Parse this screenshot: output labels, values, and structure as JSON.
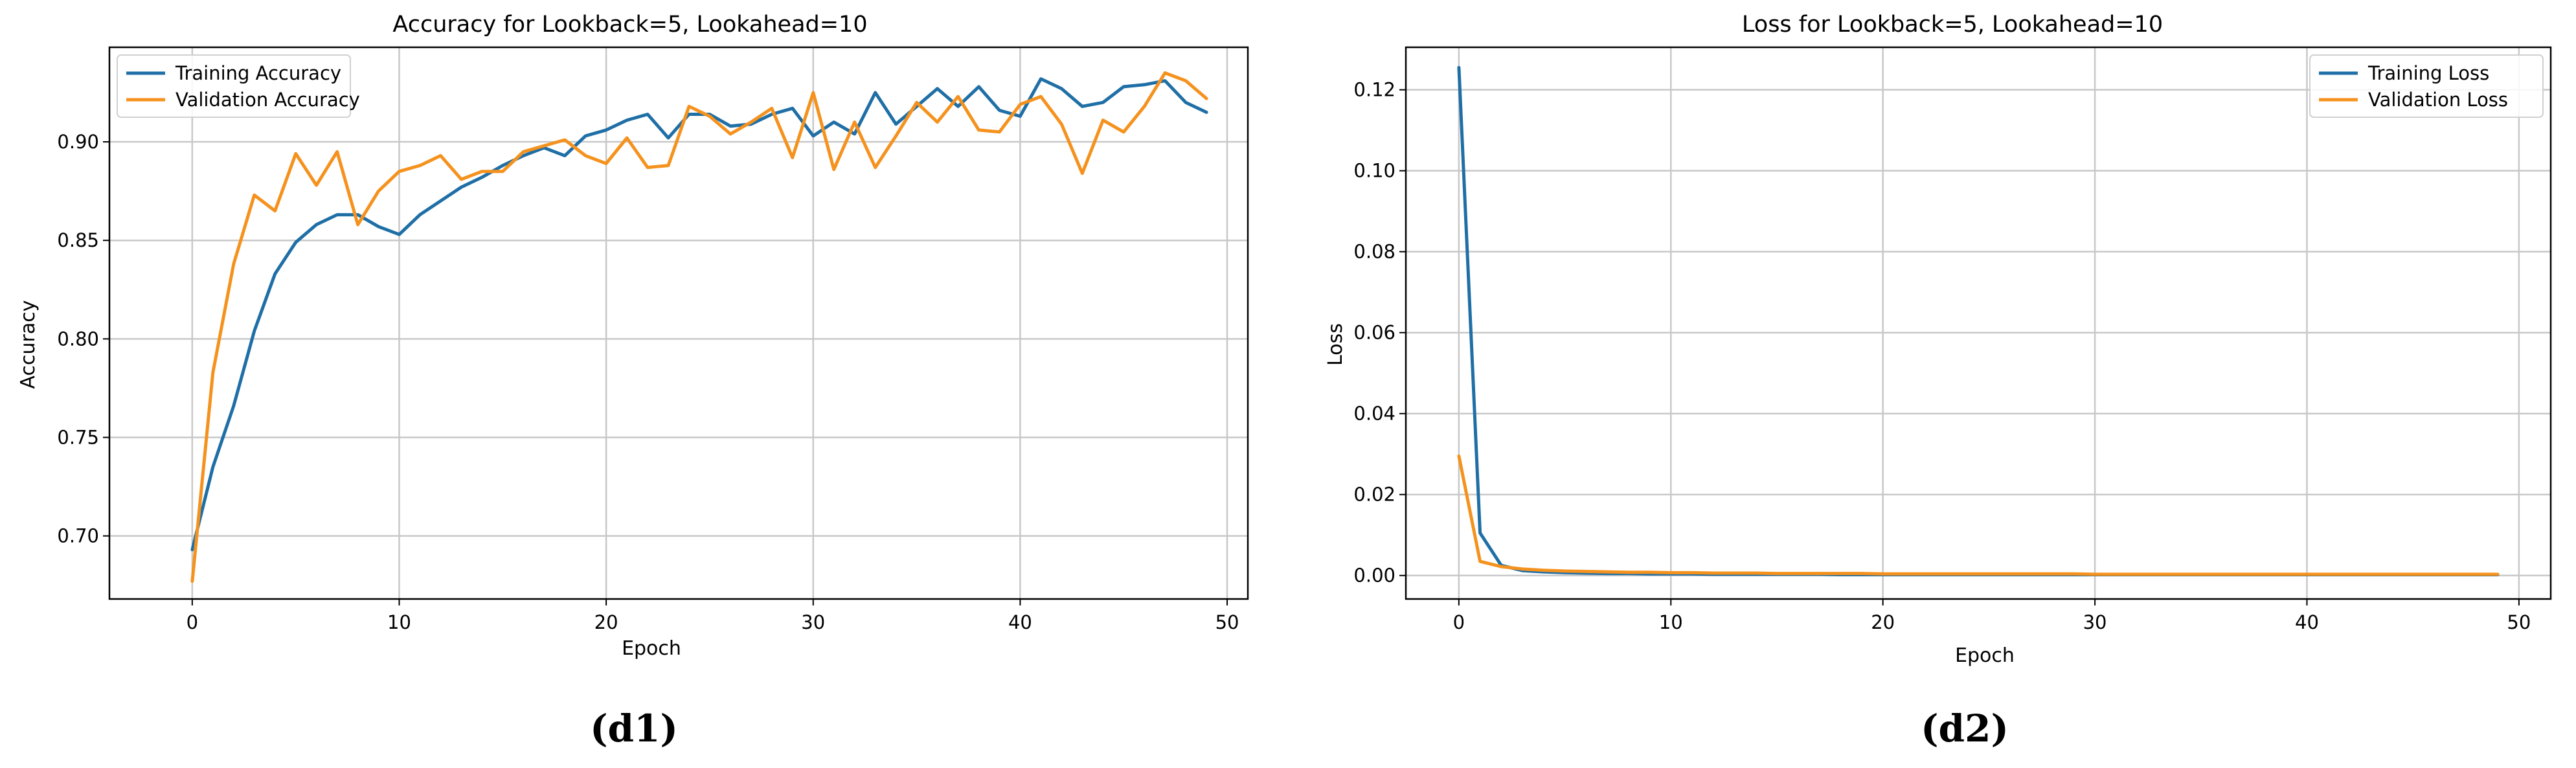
{
  "colors": {
    "training": "#1f6fa6",
    "validation": "#f5921e",
    "grid": "#c8c8c8",
    "frame": "#000000"
  },
  "chart_data": [
    {
      "type": "line",
      "title": "Accuracy for Lookback=5, Lookahead=10",
      "xlabel": "Epoch",
      "ylabel": "Accuracy",
      "caption": "(d1)",
      "xlim": [
        -4,
        51
      ],
      "ylim": [
        0.668,
        0.948
      ],
      "xticks": [
        0,
        10,
        20,
        30,
        40,
        50
      ],
      "yticks": [
        0.7,
        0.75,
        0.8,
        0.85,
        0.9
      ],
      "ytick_labels": [
        "0.70",
        "0.75",
        "0.80",
        "0.85",
        "0.90"
      ],
      "grid": true,
      "legend_position": "top-left",
      "series": [
        {
          "name": "Training Accuracy",
          "color_key": "training",
          "values": [
            0.693,
            0.735,
            0.766,
            0.804,
            0.833,
            0.849,
            0.858,
            0.863,
            0.863,
            0.857,
            0.853,
            0.863,
            0.87,
            0.877,
            0.882,
            0.888,
            0.893,
            0.897,
            0.893,
            0.903,
            0.906,
            0.911,
            0.914,
            0.902,
            0.914,
            0.914,
            0.908,
            0.909,
            0.914,
            0.917,
            0.903,
            0.91,
            0.904,
            0.925,
            0.909,
            0.918,
            0.927,
            0.918,
            0.928,
            0.916,
            0.913,
            0.932,
            0.927,
            0.918,
            0.92,
            0.928,
            0.929,
            0.931,
            0.92,
            0.915
          ]
        },
        {
          "name": "Validation Accuracy",
          "color_key": "validation",
          "values": [
            0.677,
            0.783,
            0.838,
            0.873,
            0.865,
            0.894,
            0.878,
            0.895,
            0.858,
            0.875,
            0.885,
            0.888,
            0.893,
            0.881,
            0.885,
            0.885,
            0.895,
            0.898,
            0.901,
            0.893,
            0.889,
            0.902,
            0.887,
            0.888,
            0.918,
            0.913,
            0.904,
            0.91,
            0.917,
            0.892,
            0.925,
            0.886,
            0.91,
            0.887,
            0.903,
            0.92,
            0.91,
            0.923,
            0.906,
            0.905,
            0.919,
            0.923,
            0.909,
            0.884,
            0.911,
            0.905,
            0.918,
            0.935,
            0.931,
            0.922
          ]
        }
      ]
    },
    {
      "type": "line",
      "title": "Loss for Lookback=5, Lookahead=10",
      "xlabel": "Epoch",
      "ylabel": "Loss",
      "caption": "(d2)",
      "xlim": [
        -2.5,
        51.5
      ],
      "ylim": [
        -0.0058,
        0.1305
      ],
      "xticks": [
        0,
        10,
        20,
        30,
        40,
        50
      ],
      "yticks": [
        0.0,
        0.02,
        0.04,
        0.06,
        0.08,
        0.1,
        0.12
      ],
      "ytick_labels": [
        "0.00",
        "0.02",
        "0.04",
        "0.06",
        "0.08",
        "0.10",
        "0.12"
      ],
      "grid": true,
      "legend_position": "top-right",
      "series": [
        {
          "name": "Training Loss",
          "color_key": "training",
          "values": [
            0.1255,
            0.0105,
            0.0025,
            0.0012,
            0.0009,
            0.0007,
            0.0006,
            0.0005,
            0.0005,
            0.0004,
            0.0004,
            0.0004,
            0.0003,
            0.0003,
            0.0003,
            0.0003,
            0.0003,
            0.0003,
            0.0002,
            0.0002,
            0.0002,
            0.0002,
            0.0002,
            0.0002,
            0.0002,
            0.0002,
            0.0002,
            0.0002,
            0.0002,
            0.0002,
            0.0002,
            0.0002,
            0.0002,
            0.0002,
            0.0002,
            0.0002,
            0.0002,
            0.0002,
            0.0002,
            0.0002,
            0.0002,
            0.0002,
            0.0002,
            0.0002,
            0.0002,
            0.0002,
            0.0002,
            0.0002,
            0.0002,
            0.0002
          ]
        },
        {
          "name": "Validation Loss",
          "color_key": "validation",
          "values": [
            0.0295,
            0.0035,
            0.0022,
            0.0016,
            0.0013,
            0.0011,
            0.001,
            0.0009,
            0.0008,
            0.0008,
            0.0007,
            0.0007,
            0.0006,
            0.0006,
            0.0006,
            0.0005,
            0.0005,
            0.0005,
            0.0005,
            0.0005,
            0.0004,
            0.0004,
            0.0004,
            0.0004,
            0.0004,
            0.0004,
            0.0004,
            0.0004,
            0.0004,
            0.0004,
            0.0003,
            0.0003,
            0.0003,
            0.0003,
            0.0003,
            0.0003,
            0.0003,
            0.0003,
            0.0003,
            0.0003,
            0.0003,
            0.0003,
            0.0003,
            0.0003,
            0.0003,
            0.0003,
            0.0003,
            0.0003,
            0.0003,
            0.0003
          ]
        }
      ]
    }
  ]
}
